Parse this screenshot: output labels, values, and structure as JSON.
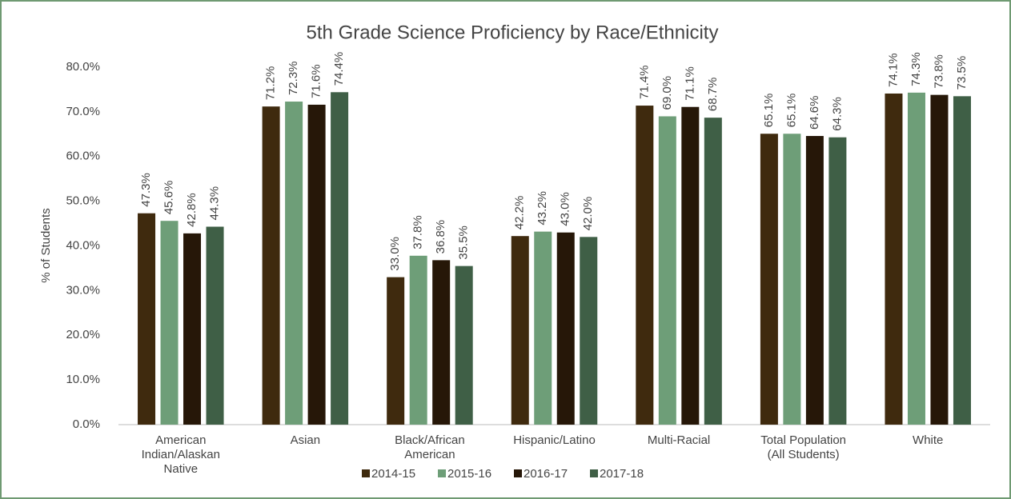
{
  "chart_data": {
    "type": "bar",
    "title": "5th Grade Science Proficiency by Race/Ethnicity",
    "y_label": "% of Students",
    "categories": [
      "American Indian/Alaskan Native",
      "Asian",
      "Black/African American",
      "Hispanic/Latino",
      "Multi-Racial",
      "Total Population (All Students)",
      "White"
    ],
    "series": [
      {
        "name": "2014-15",
        "color": "#3f2a0e",
        "values": [
          47.3,
          71.2,
          33.0,
          42.2,
          71.4,
          65.1,
          74.1
        ],
        "value_labels": [
          "47.3%",
          "71.2%",
          "33.0%",
          "42.2%",
          "71.4%",
          "65.1%",
          "74.1%"
        ]
      },
      {
        "name": "2015-16",
        "color": "#6e9e78",
        "values": [
          45.6,
          72.3,
          37.8,
          43.2,
          69.0,
          65.1,
          74.3
        ],
        "value_labels": [
          "45.6%",
          "72.3%",
          "37.8%",
          "43.2%",
          "69.0%",
          "65.1%",
          "74.3%"
        ]
      },
      {
        "name": "2016-17",
        "color": "#261708",
        "values": [
          42.8,
          71.6,
          36.8,
          43.0,
          71.1,
          64.6,
          73.8
        ],
        "value_labels": [
          "42.8%",
          "71.6%",
          "36.8%",
          "43.0%",
          "71.1%",
          "64.6%",
          "73.8%"
        ]
      },
      {
        "name": "2017-18",
        "color": "#3f5f46",
        "values": [
          44.3,
          74.4,
          35.5,
          42.0,
          68.7,
          64.3,
          73.5
        ],
        "value_labels": [
          "44.3%",
          "74.4%",
          "35.5%",
          "42.0%",
          "68.7%",
          "64.3%",
          "73.5%"
        ]
      }
    ],
    "ylim": [
      0,
      80
    ],
    "yticks": [
      {
        "value": 0,
        "label": "0.0%"
      },
      {
        "value": 10,
        "label": "10.0%"
      },
      {
        "value": 20,
        "label": "20.0%"
      },
      {
        "value": 30,
        "label": "30.0%"
      },
      {
        "value": 40,
        "label": "40.0%"
      },
      {
        "value": 50,
        "label": "50.0%"
      },
      {
        "value": 60,
        "label": "60.0%"
      },
      {
        "value": 70,
        "label": "70.0%"
      },
      {
        "value": 80,
        "label": "80.0%"
      }
    ],
    "grid": false,
    "legend": "bottom"
  }
}
